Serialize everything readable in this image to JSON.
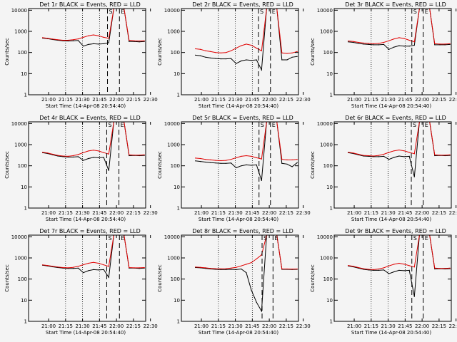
{
  "figure": {
    "background": "#f4f4f4",
    "series_colors": {
      "events": "#000000",
      "lld": "#e00000"
    },
    "ylabel": "Counts/sec",
    "xlabel": "Start Time (14-Apr-08 20:54:40)",
    "ytick_labels": [
      "1",
      "10",
      "100",
      "1000",
      "10000"
    ],
    "xtick_labels": [
      "21:00",
      "21:15",
      "21:30",
      "21:45",
      "22:00",
      "22:15",
      "22:30"
    ],
    "markers": [
      "S",
      "E"
    ]
  },
  "chart_data": [
    {
      "type": "line",
      "title": "Det 1r BLACK = Events, RED = LLD",
      "xlabel": "Start Time (14-Apr-08 20:54:40)",
      "ylabel": "Counts/sec",
      "scale": "log",
      "ylim": [
        1,
        12000
      ],
      "xlim": [
        -5.5,
        40.5
      ],
      "x": [
        0,
        2,
        4,
        6,
        8,
        10,
        12,
        14,
        16,
        18,
        20,
        22,
        24,
        26,
        28,
        30,
        32,
        34,
        36,
        38,
        40
      ],
      "series": [
        {
          "name": "Events",
          "color": "#000000",
          "values": [
            480,
            450,
            410,
            380,
            360,
            350,
            360,
            370,
            200,
            240,
            260,
            250,
            260,
            290,
            15000,
            15000,
            15000,
            330,
            330,
            320,
            330
          ]
        },
        {
          "name": "LLD",
          "color": "#e00000",
          "values": [
            500,
            470,
            430,
            400,
            380,
            380,
            400,
            440,
            520,
            620,
            680,
            620,
            520,
            470,
            15000,
            15000,
            15000,
            380,
            360,
            350,
            360
          ]
        }
      ],
      "markers": [
        {
          "label": "S",
          "x": 25.5,
          "line": "dashed"
        },
        {
          "label": "E",
          "x": 30.2,
          "line": "dashed"
        }
      ]
    },
    {
      "type": "line",
      "title": "Det 2r BLACK = Events, RED = LLD",
      "xlabel": "Start Time (14-Apr-08 20:54:40)",
      "ylabel": "Counts/sec",
      "scale": "log",
      "ylim": [
        1,
        12000
      ],
      "xlim": [
        -5.5,
        40.5
      ],
      "x": [
        0,
        2,
        4,
        6,
        8,
        10,
        12,
        14,
        16,
        18,
        20,
        22,
        24,
        26,
        28,
        30,
        32,
        34,
        36,
        38,
        40
      ],
      "series": [
        {
          "name": "Events",
          "color": "#000000",
          "values": [
            75,
            70,
            60,
            55,
            52,
            50,
            50,
            52,
            30,
            40,
            45,
            42,
            45,
            15,
            15000,
            15000,
            15000,
            45,
            45,
            60,
            65
          ]
        },
        {
          "name": "LLD",
          "color": "#e00000",
          "values": [
            150,
            140,
            120,
            110,
            100,
            95,
            100,
            120,
            160,
            210,
            250,
            220,
            160,
            120,
            15000,
            15000,
            15000,
            95,
            90,
            95,
            110
          ]
        }
      ],
      "markers": [
        {
          "label": "S",
          "x": 24.8,
          "line": "dashed"
        },
        {
          "label": "E",
          "x": 29.5,
          "line": "dashed"
        }
      ]
    },
    {
      "type": "line",
      "title": "Det 3r BLACK = Events, RED = LLD",
      "xlabel": "Start Time (14-Apr-08 20:54:40)",
      "ylabel": "Counts/sec",
      "scale": "log",
      "ylim": [
        1,
        12000
      ],
      "xlim": [
        -5.5,
        40.5
      ],
      "x": [
        0,
        2,
        4,
        6,
        8,
        10,
        12,
        14,
        16,
        18,
        20,
        22,
        24,
        26,
        28,
        30,
        32,
        34,
        36,
        38,
        40
      ],
      "series": [
        {
          "name": "Events",
          "color": "#000000",
          "values": [
            320,
            300,
            270,
            250,
            240,
            230,
            230,
            240,
            140,
            180,
            210,
            200,
            200,
            220,
            15000,
            15000,
            15000,
            230,
            230,
            230,
            240
          ]
        },
        {
          "name": "LLD",
          "color": "#e00000",
          "values": [
            350,
            330,
            300,
            280,
            270,
            260,
            270,
            300,
            360,
            440,
            500,
            460,
            380,
            320,
            15000,
            15000,
            15000,
            260,
            250,
            250,
            260
          ]
        }
      ],
      "markers": [
        {
          "label": "S",
          "x": 25.0,
          "line": "dashed"
        },
        {
          "label": "E",
          "x": 29.5,
          "line": "dashed"
        }
      ]
    },
    {
      "type": "line",
      "title": "Det 4r BLACK = Events, RED = LLD",
      "xlabel": "Start Time (14-Apr-08 20:54:40)",
      "ylabel": "Counts/sec",
      "scale": "log",
      "ylim": [
        1,
        12000
      ],
      "xlim": [
        -5.5,
        40.5
      ],
      "x": [
        0,
        2,
        4,
        6,
        8,
        10,
        12,
        14,
        16,
        18,
        20,
        22,
        24,
        26,
        28,
        30,
        32,
        34,
        36,
        38,
        40
      ],
      "series": [
        {
          "name": "Events",
          "color": "#000000",
          "values": [
            420,
            380,
            330,
            290,
            270,
            260,
            260,
            270,
            180,
            220,
            250,
            240,
            250,
            60,
            15000,
            15000,
            15000,
            300,
            310,
            300,
            310
          ]
        },
        {
          "name": "LLD",
          "color": "#e00000",
          "values": [
            440,
            400,
            350,
            310,
            290,
            280,
            300,
            340,
            420,
            500,
            550,
            500,
            420,
            360,
            15000,
            15000,
            15000,
            330,
            320,
            320,
            330
          ]
        }
      ],
      "markers": [
        {
          "label": "S",
          "x": 25.2,
          "line": "dashed"
        },
        {
          "label": "E",
          "x": 30.0,
          "line": "dashed"
        }
      ]
    },
    {
      "type": "line",
      "title": "Det 5r BLACK = Events, RED = LLD",
      "xlabel": "Start Time (14-Apr-08 20:54:40)",
      "ylabel": "Counts/sec",
      "scale": "log",
      "ylim": [
        1,
        12000
      ],
      "xlim": [
        -5.5,
        40.5
      ],
      "x": [
        0,
        2,
        4,
        6,
        8,
        10,
        12,
        14,
        16,
        18,
        20,
        22,
        24,
        26,
        28,
        30,
        32,
        34,
        36,
        38,
        40
      ],
      "series": [
        {
          "name": "Events",
          "color": "#000000",
          "values": [
            170,
            160,
            150,
            140,
            135,
            130,
            130,
            135,
            80,
            100,
            110,
            105,
            110,
            20,
            15000,
            15000,
            15000,
            130,
            120,
            90,
            140
          ]
        },
        {
          "name": "LLD",
          "color": "#e00000",
          "values": [
            230,
            220,
            200,
            190,
            180,
            175,
            180,
            200,
            240,
            280,
            300,
            280,
            240,
            210,
            15000,
            15000,
            15000,
            200,
            190,
            190,
            200
          ]
        }
      ],
      "markers": [
        {
          "label": "S",
          "x": 25.0,
          "line": "dashed"
        },
        {
          "label": "E",
          "x": 29.5,
          "line": "dashed"
        }
      ]
    },
    {
      "type": "line",
      "title": "Det 6r BLACK = Events, RED = LLD",
      "xlabel": "Start Time (14-Apr-08 20:54:40)",
      "ylabel": "Counts/sec",
      "scale": "log",
      "ylim": [
        1,
        12000
      ],
      "xlim": [
        -5.5,
        40.5
      ],
      "x": [
        0,
        2,
        4,
        6,
        8,
        10,
        12,
        14,
        16,
        18,
        20,
        22,
        24,
        26,
        28,
        30,
        32,
        34,
        36,
        38,
        40
      ],
      "series": [
        {
          "name": "Events",
          "color": "#000000",
          "values": [
            420,
            380,
            330,
            290,
            280,
            270,
            270,
            280,
            200,
            250,
            290,
            270,
            280,
            30,
            15000,
            15000,
            15000,
            300,
            310,
            300,
            310
          ]
        },
        {
          "name": "LLD",
          "color": "#e00000",
          "values": [
            440,
            400,
            350,
            310,
            300,
            290,
            310,
            350,
            430,
            510,
            560,
            510,
            430,
            370,
            15000,
            15000,
            15000,
            330,
            320,
            320,
            330
          ]
        }
      ],
      "markers": [
        {
          "label": "S",
          "x": 24.8,
          "line": "dashed"
        },
        {
          "label": "E",
          "x": 29.5,
          "line": "dashed"
        }
      ]
    },
    {
      "type": "line",
      "title": "Det 7r BLACK = Events, RED = LLD",
      "xlabel": "Start Time (14-Apr-08 20:54:40)",
      "ylabel": "Counts/sec",
      "scale": "log",
      "ylim": [
        1,
        12000
      ],
      "xlim": [
        -5.5,
        40.5
      ],
      "x": [
        0,
        2,
        4,
        6,
        8,
        10,
        12,
        14,
        16,
        18,
        20,
        22,
        24,
        26,
        28,
        30,
        32,
        34,
        36,
        38,
        40
      ],
      "series": [
        {
          "name": "Events",
          "color": "#000000",
          "values": [
            450,
            420,
            380,
            350,
            330,
            320,
            320,
            330,
            200,
            250,
            280,
            270,
            280,
            120,
            15000,
            15000,
            15000,
            330,
            330,
            320,
            330
          ]
        },
        {
          "name": "LLD",
          "color": "#e00000",
          "values": [
            470,
            440,
            400,
            370,
            350,
            340,
            360,
            400,
            480,
            560,
            620,
            560,
            470,
            400,
            15000,
            15000,
            15000,
            350,
            340,
            340,
            350
          ]
        }
      ],
      "markers": [
        {
          "label": "S",
          "x": 25.2,
          "line": "dashed"
        },
        {
          "label": "E",
          "x": 30.2,
          "line": "dashed"
        }
      ]
    },
    {
      "type": "line",
      "title": "Det 8r BLACK = Events, RED = LLD",
      "xlabel": "Start Time (14-Apr-08 20:54:40)",
      "ylabel": "Counts/sec",
      "scale": "log",
      "ylim": [
        1,
        12000
      ],
      "xlim": [
        -5.5,
        40.5
      ],
      "x": [
        0,
        2,
        4,
        6,
        8,
        10,
        12,
        14,
        16,
        18,
        20,
        22,
        24,
        26,
        28,
        30,
        32,
        34,
        36,
        38,
        40
      ],
      "series": [
        {
          "name": "Events",
          "color": "#000000",
          "values": [
            350,
            340,
            320,
            300,
            290,
            285,
            285,
            290,
            280,
            300,
            200,
            30,
            8,
            3,
            15000,
            15000,
            15000,
            290,
            290,
            285,
            290
          ]
        },
        {
          "name": "LLD",
          "color": "#e00000",
          "values": [
            370,
            360,
            340,
            320,
            310,
            305,
            310,
            330,
            360,
            420,
            500,
            600,
            900,
            1400,
            15000,
            15000,
            15000,
            300,
            300,
            295,
            300
          ]
        }
      ],
      "markers": [
        {
          "label": "S",
          "x": 26.2,
          "line": "dashed"
        },
        {
          "label": "E",
          "x": 30.5,
          "line": "dashed"
        }
      ]
    },
    {
      "type": "line",
      "title": "Det 9r BLACK = Events, RED = LLD",
      "xlabel": "Start Time (14-Apr-08 20:54:40)",
      "ylabel": "Counts/sec",
      "scale": "log",
      "ylim": [
        1,
        12000
      ],
      "xlim": [
        -5.5,
        40.5
      ],
      "x": [
        0,
        2,
        4,
        6,
        8,
        10,
        12,
        14,
        16,
        18,
        20,
        22,
        24,
        26,
        28,
        30,
        32,
        34,
        36,
        38,
        40
      ],
      "series": [
        {
          "name": "Events",
          "color": "#000000",
          "values": [
            420,
            380,
            330,
            290,
            270,
            260,
            260,
            270,
            180,
            220,
            260,
            250,
            260,
            15,
            15000,
            15000,
            15000,
            300,
            310,
            300,
            310
          ]
        },
        {
          "name": "LLD",
          "color": "#e00000",
          "values": [
            440,
            400,
            350,
            310,
            290,
            280,
            300,
            340,
            420,
            500,
            560,
            510,
            430,
            370,
            15000,
            15000,
            15000,
            330,
            320,
            320,
            330
          ]
        }
      ],
      "markers": [
        {
          "label": "S",
          "x": 25.0,
          "line": "dashed"
        },
        {
          "label": "E",
          "x": 29.5,
          "line": "dashed"
        }
      ]
    }
  ]
}
